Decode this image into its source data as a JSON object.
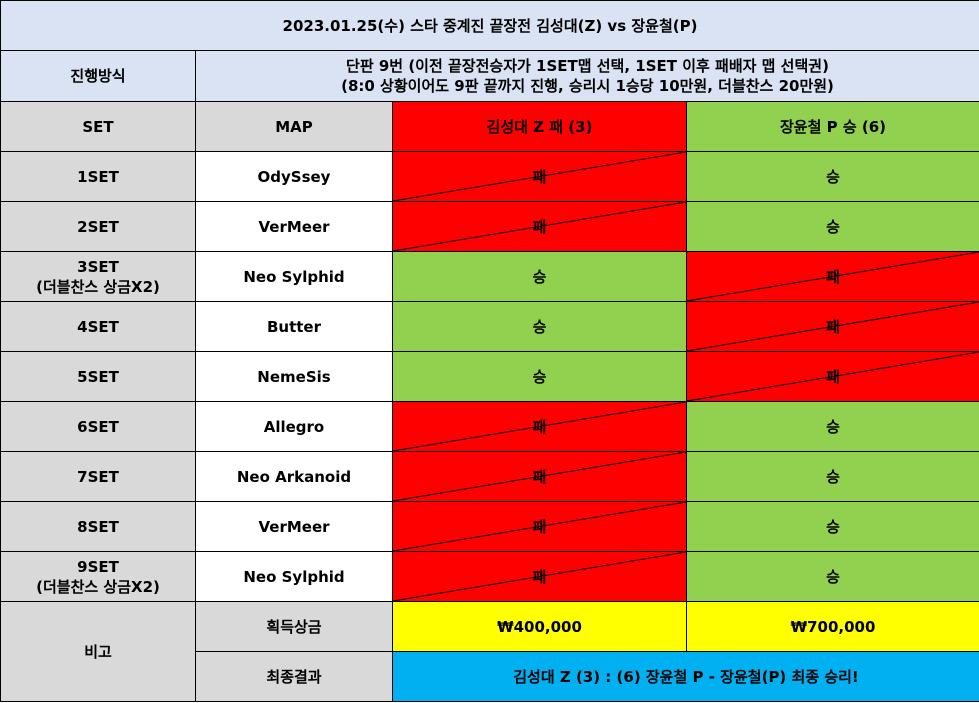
{
  "title": "2023.01.25(수) 스타 중계진 끝장전 김성대(Z) vs 장윤철(P)",
  "method": {
    "label": "진행방식",
    "line1": "단판 9번 (이전 끝장전승자가 1SET맵 선택, 1SET 이후 패배자 맵 선택권)",
    "line2": "(8:0 상황이어도 9판 끝까지 진행, 승리시 1승당 10만원, 더블찬스 20만원)"
  },
  "header": {
    "set": "SET",
    "map": "MAP",
    "player1": "김성대 Z 패 (3)",
    "player2": "장윤철 P 승 (6)"
  },
  "rows": [
    {
      "set": "1SET",
      "set_sub": "",
      "map": "OdySsey",
      "p1": "패",
      "p2": "승"
    },
    {
      "set": "2SET",
      "set_sub": "",
      "map": "VerMeer",
      "p1": "패",
      "p2": "승"
    },
    {
      "set": "3SET",
      "set_sub": "(더블찬스 상금X2)",
      "map": "Neo Sylphid",
      "p1": "승",
      "p2": "패"
    },
    {
      "set": "4SET",
      "set_sub": "",
      "map": "Butter",
      "p1": "승",
      "p2": "패"
    },
    {
      "set": "5SET",
      "set_sub": "",
      "map": "NemeSis",
      "p1": "승",
      "p2": "패"
    },
    {
      "set": "6SET",
      "set_sub": "",
      "map": "Allegro",
      "p1": "패",
      "p2": "승"
    },
    {
      "set": "7SET",
      "set_sub": "",
      "map": "Neo Arkanoid",
      "p1": "패",
      "p2": "승"
    },
    {
      "set": "8SET",
      "set_sub": "",
      "map": "VerMeer",
      "p1": "패",
      "p2": "승"
    },
    {
      "set": "9SET",
      "set_sub": "(더블찬스 상금X2)",
      "map": "Neo Sylphid",
      "p1": "패",
      "p2": "승"
    }
  ],
  "remarks": {
    "label": "비고",
    "prize_label": "획득상금",
    "prize_p1": "₩400,000",
    "prize_p2": "₩700,000",
    "result_label": "최종결과",
    "result": "김성대 Z (3) : (6) 장윤철 P - 장윤철(P) 최종 승리!"
  },
  "colors": {
    "win": "#92d050",
    "loss": "#ff0000",
    "header_bg": "#dae3f3",
    "label_bg": "#d9d9d9",
    "prize_bg": "#ffff00",
    "result_bg": "#00b0f0"
  }
}
